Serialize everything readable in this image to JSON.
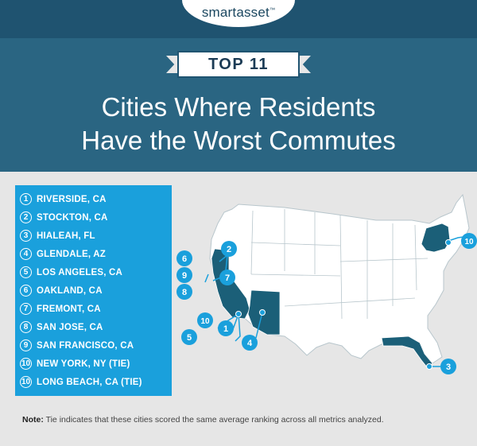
{
  "brand": {
    "name": "smartasset",
    "mark": "™"
  },
  "badge": "TOP 11",
  "title": {
    "line1": "Cities Where Residents",
    "line2": "Have the Worst Commutes"
  },
  "colors": {
    "header": "#2a6582",
    "header_dark": "#1f5370",
    "panel": "#1aa0dc",
    "highlight_state": "#1b5f78",
    "map_state": "#ffffff",
    "marker": "#1aa0dc"
  },
  "cities": [
    {
      "rank": "1",
      "name": "RIVERSIDE, CA"
    },
    {
      "rank": "2",
      "name": "STOCKTON, CA"
    },
    {
      "rank": "3",
      "name": "HIALEAH, FL"
    },
    {
      "rank": "4",
      "name": "GLENDALE, AZ"
    },
    {
      "rank": "5",
      "name": "LOS ANGELES, CA"
    },
    {
      "rank": "6",
      "name": "OAKLAND, CA"
    },
    {
      "rank": "7",
      "name": "FREMONT, CA"
    },
    {
      "rank": "8",
      "name": "SAN JOSE, CA"
    },
    {
      "rank": "9",
      "name": "SAN FRANCISCO, CA"
    },
    {
      "rank": "10",
      "name": "NEW YORK, NY (TIE)"
    },
    {
      "rank": "10",
      "name": "LONG BEACH, CA (TIE)"
    }
  ],
  "map": {
    "highlighted_states": [
      "California",
      "Arizona",
      "Florida",
      "New York"
    ],
    "markers": [
      "1",
      "2",
      "3",
      "4",
      "5",
      "6",
      "7",
      "8",
      "9",
      "10",
      "10"
    ]
  },
  "note": {
    "label": "Note:",
    "text": "Tie indicates that these cities scored the same average ranking across all metrics analyzed."
  }
}
